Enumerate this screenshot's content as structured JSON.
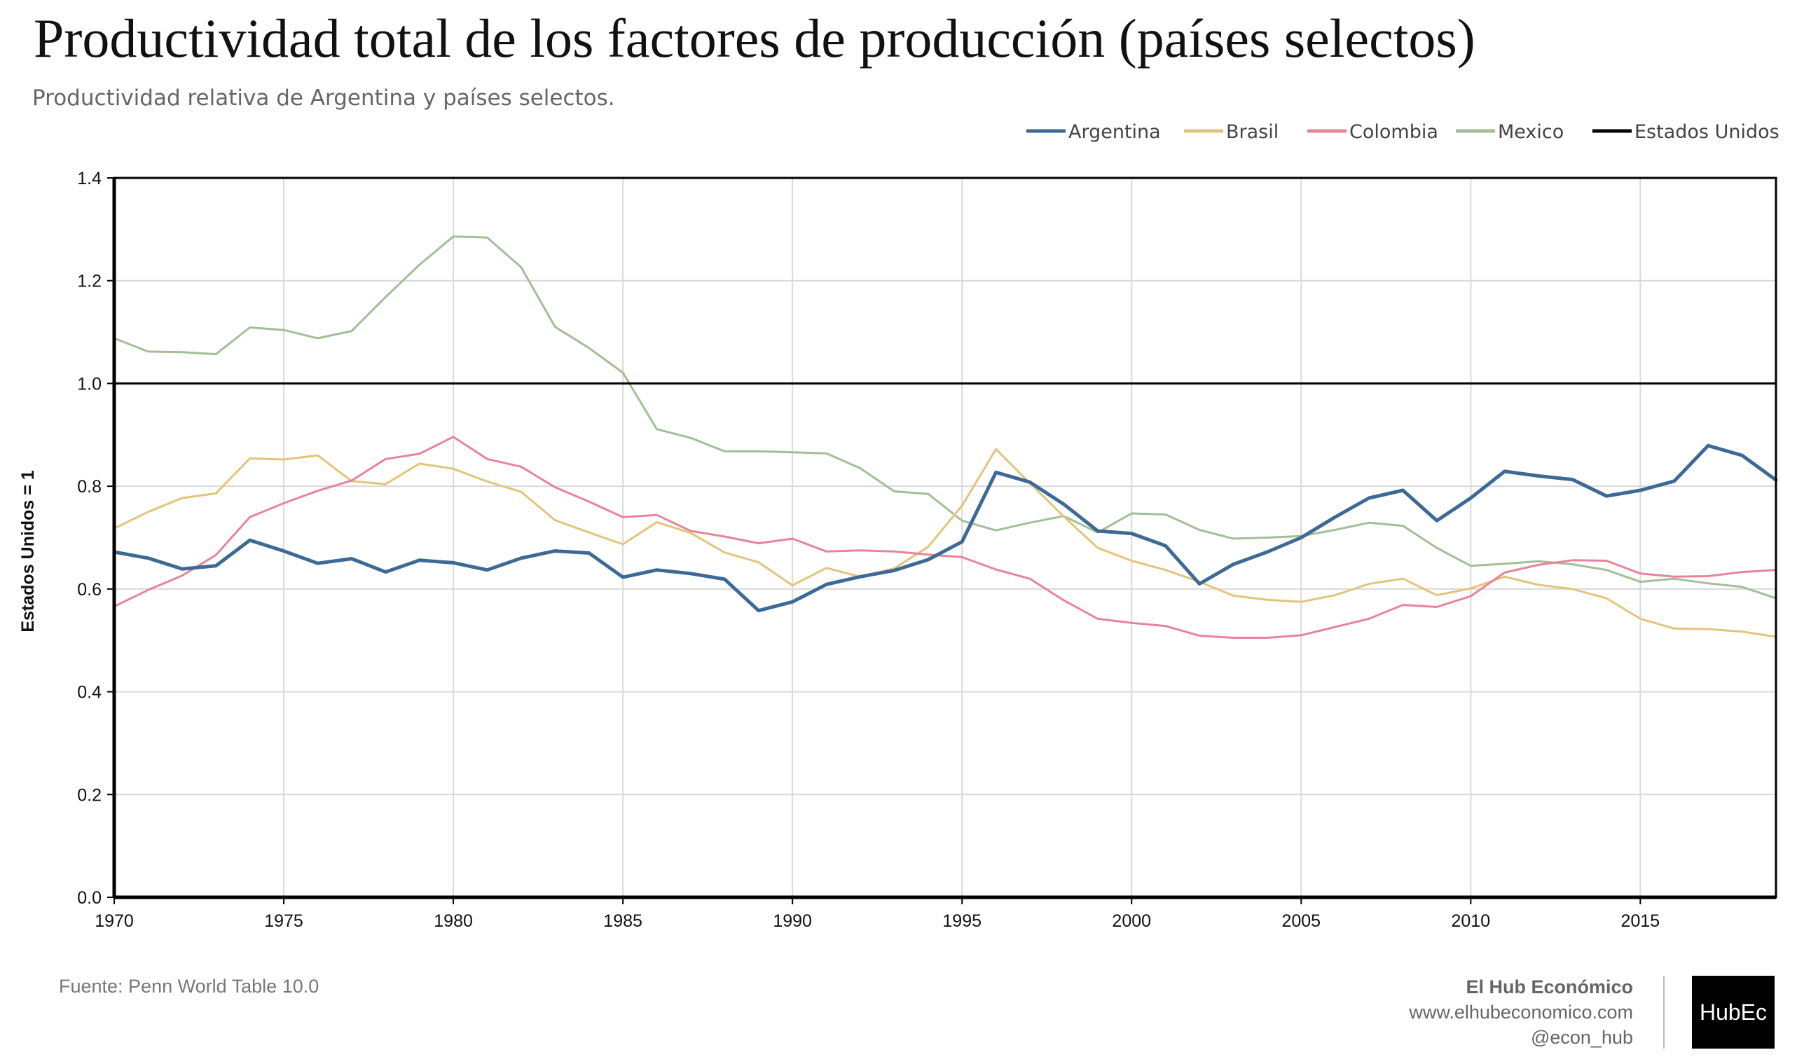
{
  "title": "Productividad total de los factores de producción (países selectos)",
  "subtitle": "Productividad relativa de Argentina y países selectos.",
  "footer": {
    "source": "Fuente: Penn World Table 10.0",
    "brand_name": "El Hub Económico",
    "brand_url": "www.elhubeconomico.com",
    "brand_handle": "@econ_hub",
    "logo_text": "HubEc"
  },
  "chart_data": {
    "type": "line",
    "title": "Productividad total de los factores de producción (países selectos)",
    "subtitle": "Productividad relativa de Argentina y países selectos.",
    "xlabel": "",
    "ylabel": "Estados Unidos = 1",
    "xlim": [
      1970,
      2019
    ],
    "ylim": [
      0,
      1.4
    ],
    "x_ticks": [
      1970,
      1975,
      1980,
      1985,
      1990,
      1995,
      2000,
      2005,
      2010,
      2015
    ],
    "y_ticks": [
      "0.0",
      "0.2",
      "0.4",
      "0.6",
      "0.8",
      "1.0",
      "1.2",
      "1.4"
    ],
    "grid": true,
    "legend_position": "top-right",
    "x": [
      1970,
      1971,
      1972,
      1973,
      1974,
      1975,
      1976,
      1977,
      1978,
      1979,
      1980,
      1981,
      1982,
      1983,
      1984,
      1985,
      1986,
      1987,
      1988,
      1989,
      1990,
      1991,
      1992,
      1993,
      1994,
      1995,
      1996,
      1997,
      1998,
      1999,
      2000,
      2001,
      2002,
      2003,
      2004,
      2005,
      2006,
      2007,
      2008,
      2009,
      2010,
      2011,
      2012,
      2013,
      2014,
      2015,
      2016,
      2017,
      2018,
      2019
    ],
    "series": [
      {
        "name": "Argentina",
        "color": "#3d6a94",
        "width": 5,
        "values": [
          0.672,
          0.66,
          0.639,
          0.645,
          0.695,
          0.674,
          0.65,
          0.659,
          0.633,
          0.656,
          0.651,
          0.637,
          0.66,
          0.674,
          0.67,
          0.623,
          0.637,
          0.63,
          0.619,
          0.558,
          0.575,
          0.609,
          0.624,
          0.636,
          0.657,
          0.692,
          0.827,
          0.808,
          0.765,
          0.713,
          0.708,
          0.684,
          0.61,
          0.648,
          0.672,
          0.7,
          0.74,
          0.777,
          0.792,
          0.733,
          0.777,
          0.829,
          0.82,
          0.813,
          0.781,
          0.792,
          0.81,
          0.879,
          0.86,
          0.812
        ]
      },
      {
        "name": "Brasil",
        "color": "#e3c57a",
        "width": 3,
        "values": [
          0.718,
          0.75,
          0.777,
          0.786,
          0.854,
          0.852,
          0.86,
          0.81,
          0.804,
          0.844,
          0.834,
          0.809,
          0.789,
          0.734,
          0.71,
          0.687,
          0.73,
          0.709,
          0.671,
          0.652,
          0.607,
          0.641,
          0.624,
          0.64,
          0.682,
          0.762,
          0.872,
          0.806,
          0.741,
          0.68,
          0.655,
          0.637,
          0.614,
          0.587,
          0.579,
          0.575,
          0.588,
          0.61,
          0.62,
          0.588,
          0.601,
          0.624,
          0.608,
          0.6,
          0.582,
          0.542,
          0.523,
          0.522,
          0.517,
          0.507
        ]
      },
      {
        "name": "Colombia",
        "color": "#e7849b",
        "width": 3,
        "values": [
          0.566,
          0.598,
          0.626,
          0.666,
          0.74,
          0.767,
          0.791,
          0.811,
          0.853,
          0.863,
          0.896,
          0.853,
          0.838,
          0.798,
          0.77,
          0.74,
          0.744,
          0.713,
          0.702,
          0.689,
          0.698,
          0.673,
          0.675,
          0.673,
          0.667,
          0.662,
          0.638,
          0.62,
          0.578,
          0.542,
          0.534,
          0.528,
          0.509,
          0.505,
          0.505,
          0.51,
          0.526,
          0.542,
          0.569,
          0.565,
          0.586,
          0.632,
          0.647,
          0.656,
          0.655,
          0.63,
          0.624,
          0.625,
          0.633,
          0.637
        ]
      },
      {
        "name": "Mexico",
        "color": "#a3bf97",
        "width": 3,
        "values": [
          1.088,
          1.062,
          1.061,
          1.057,
          1.109,
          1.104,
          1.088,
          1.102,
          1.168,
          1.231,
          1.286,
          1.284,
          1.226,
          1.11,
          1.069,
          1.021,
          0.911,
          0.894,
          0.868,
          0.868,
          0.866,
          0.864,
          0.835,
          0.79,
          0.785,
          0.733,
          0.714,
          0.729,
          0.742,
          0.71,
          0.747,
          0.745,
          0.715,
          0.698,
          0.7,
          0.703,
          0.715,
          0.729,
          0.723,
          0.68,
          0.645,
          0.649,
          0.654,
          0.648,
          0.637,
          0.614,
          0.62,
          0.611,
          0.604,
          0.582
        ]
      },
      {
        "name": "Estados Unidos",
        "color": "#000000",
        "width": 3,
        "values": [
          1,
          1,
          1,
          1,
          1,
          1,
          1,
          1,
          1,
          1,
          1,
          1,
          1,
          1,
          1,
          1,
          1,
          1,
          1,
          1,
          1,
          1,
          1,
          1,
          1,
          1,
          1,
          1,
          1,
          1,
          1,
          1,
          1,
          1,
          1,
          1,
          1,
          1,
          1,
          1,
          1,
          1,
          1,
          1,
          1,
          1,
          1,
          1,
          1,
          1
        ]
      }
    ]
  }
}
